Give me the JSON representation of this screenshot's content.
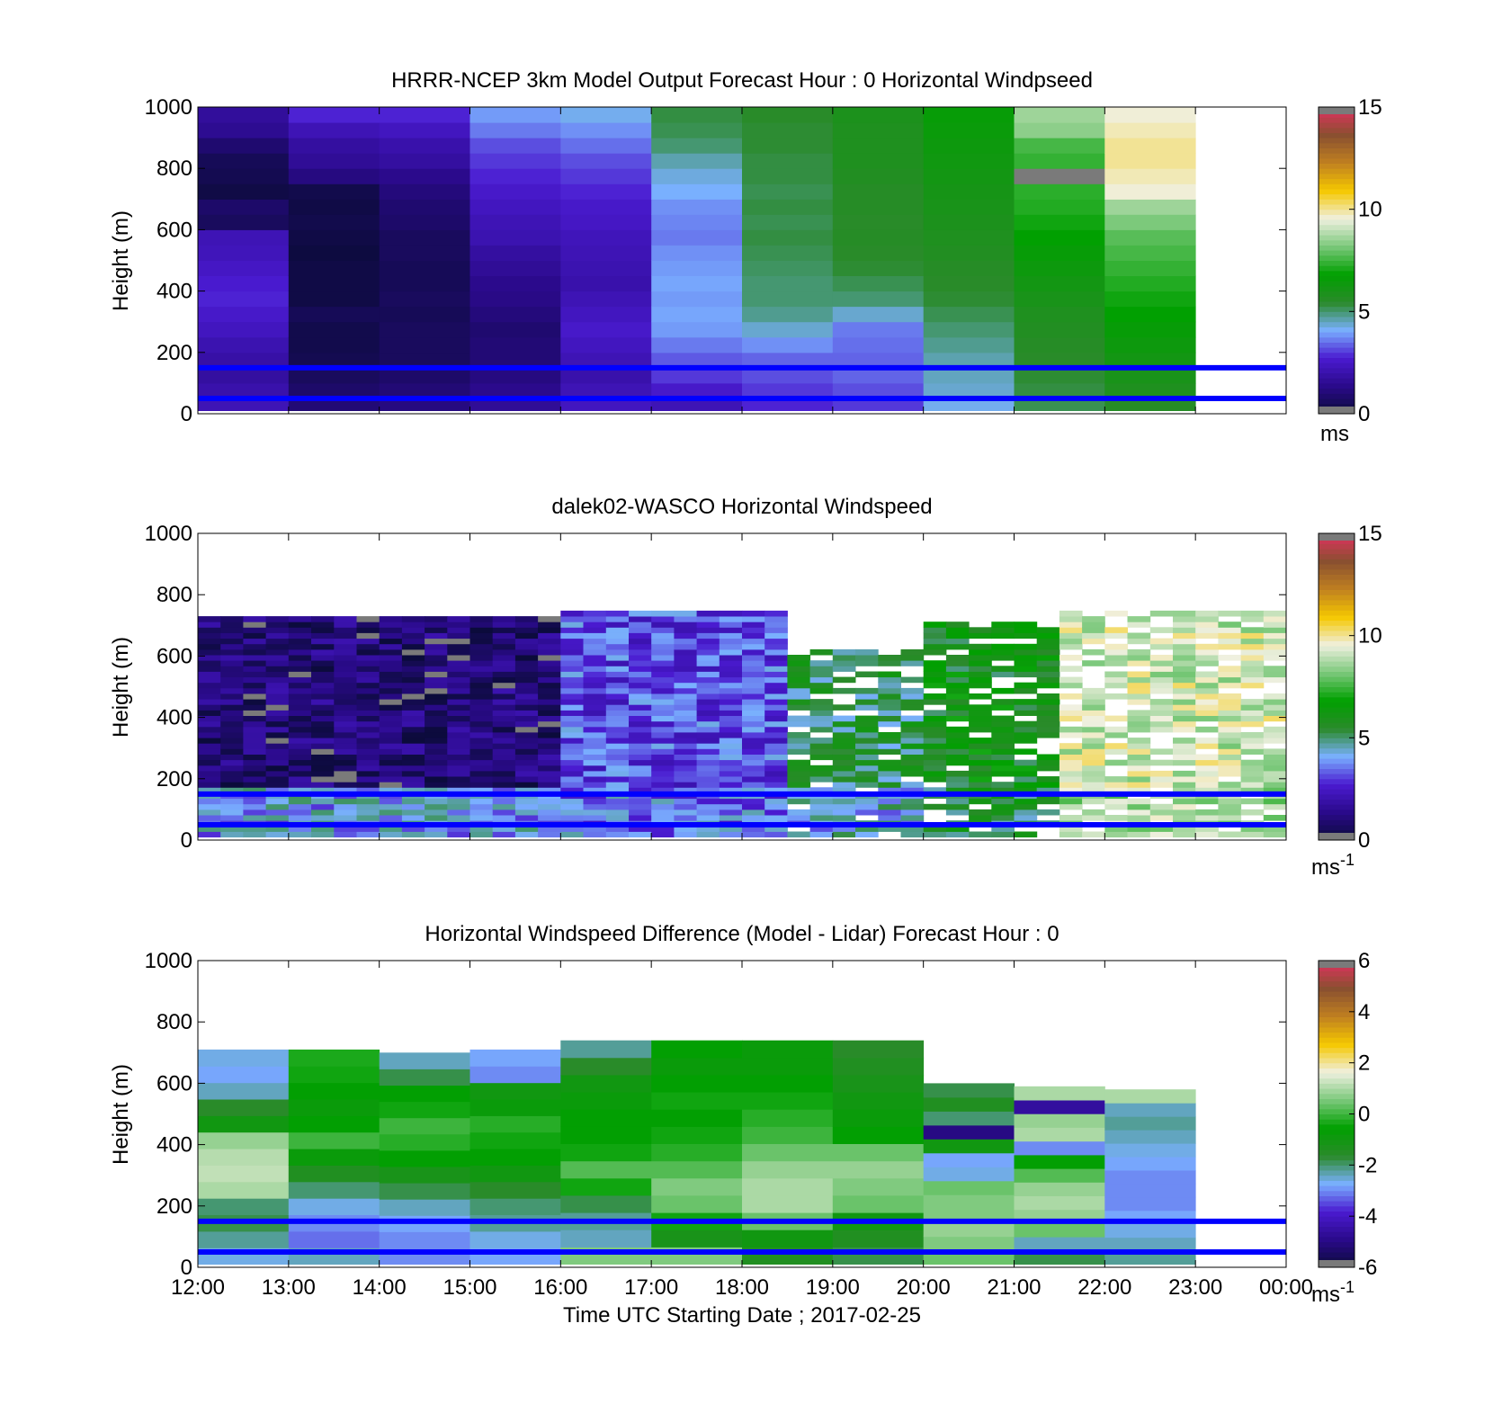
{
  "x_axis": {
    "tick_labels": [
      "12:00",
      "13:00",
      "14:00",
      "15:00",
      "16:00",
      "17:00",
      "18:00",
      "19:00",
      "20:00",
      "21:00",
      "22:00",
      "23:00",
      "00:00"
    ],
    "label": "Time UTC  Starting Date ; 2017-02-25"
  },
  "reference_lines": {
    "heights_m": [
      150,
      50
    ],
    "color": "#0000ff"
  },
  "colormap": {
    "stops": [
      "#7a7a7a",
      "#0b0b3a",
      "#2a0a8a",
      "#4a1ad0",
      "#7ab0ff",
      "#2a8a2a",
      "#00a000",
      "#7ac87a",
      "#f0f0e0",
      "#f5c800",
      "#c08020",
      "#8a5030",
      "#e03060",
      "#7a7a7a"
    ]
  },
  "chart_data": [
    {
      "type": "heatmap",
      "title": "HRRR-NCEP 3km Model Output   Forecast Hour : 0 Horizontal Windpseed",
      "ylabel": "Height (m)",
      "ylim": [
        0,
        1000
      ],
      "y_ticks": [
        "0",
        "200",
        "400",
        "600",
        "800",
        "1000"
      ],
      "xlim_hours": [
        12,
        24
      ],
      "colorbar": {
        "min": 0,
        "max": 15,
        "ticks": [
          "0",
          "5",
          "10",
          "15"
        ],
        "unit": "ms"
      },
      "columns_start_hour": [
        12,
        13,
        14,
        15,
        16,
        17,
        18,
        19,
        20,
        21,
        22
      ],
      "column_width_hours": 1,
      "row_heights_m": [
        10,
        50,
        100,
        150,
        200,
        250,
        300,
        350,
        400,
        450,
        500,
        550,
        600,
        650,
        700,
        750,
        800,
        850,
        900,
        950
      ],
      "values": [
        [
          2.2,
          2.0,
          1.8,
          1.9,
          2.1,
          2.4,
          2.6,
          2.8,
          2.7,
          2.5,
          2.3,
          2.2,
          0.6,
          0.8,
          0.2,
          0.4,
          0.5,
          0.9,
          1.5,
          1.7
        ],
        [
          1.0,
          0.8,
          0.6,
          0.4,
          0.3,
          0.3,
          0.5,
          0.2,
          0.2,
          0.2,
          0.1,
          0.2,
          0.3,
          0.2,
          0.3,
          1.2,
          1.6,
          1.8,
          2.2,
          2.8
        ],
        [
          1.2,
          1.0,
          0.8,
          0.6,
          0.6,
          0.6,
          0.5,
          0.6,
          0.5,
          0.5,
          0.6,
          0.6,
          0.8,
          0.9,
          1.1,
          1.4,
          1.8,
          2.0,
          2.4,
          2.8
        ],
        [
          1.6,
          1.4,
          1.2,
          1.0,
          1.0,
          0.9,
          1.1,
          1.3,
          1.4,
          1.6,
          1.8,
          2.1,
          2.2,
          2.4,
          2.6,
          2.8,
          3.0,
          3.2,
          3.6,
          3.9
        ],
        [
          2.4,
          2.2,
          2.0,
          2.2,
          2.4,
          2.6,
          2.4,
          2.2,
          2.0,
          2.1,
          2.2,
          2.3,
          2.5,
          2.6,
          2.8,
          3.0,
          3.2,
          3.5,
          3.8,
          4.2
        ],
        [
          2.2,
          2.6,
          3.0,
          3.3,
          3.6,
          3.9,
          4.0,
          3.9,
          4.0,
          3.9,
          3.8,
          3.6,
          3.7,
          3.8,
          4.1,
          4.3,
          4.6,
          5.0,
          5.2,
          5.3
        ],
        [
          2.8,
          3.0,
          3.2,
          3.4,
          3.8,
          4.4,
          4.8,
          5.0,
          5.0,
          5.1,
          5.2,
          5.3,
          5.2,
          5.3,
          5.2,
          5.3,
          5.3,
          5.4,
          5.4,
          5.5
        ],
        [
          3.0,
          3.2,
          3.4,
          3.4,
          3.5,
          3.6,
          4.4,
          5.0,
          5.2,
          5.4,
          5.5,
          5.6,
          5.5,
          5.6,
          5.6,
          5.7,
          5.8,
          5.8,
          5.8,
          5.9
        ],
        [
          4.2,
          4.4,
          4.5,
          4.6,
          4.8,
          5.0,
          5.2,
          5.4,
          5.5,
          5.6,
          5.7,
          5.8,
          5.9,
          6.0,
          6.1,
          6.2,
          6.3,
          6.4,
          6.5,
          6.6
        ],
        [
          5.2,
          5.3,
          5.4,
          5.5,
          5.6,
          5.7,
          5.8,
          6.0,
          6.2,
          6.4,
          6.6,
          6.8,
          7.0,
          7.2,
          7.3,
          0.0,
          7.4,
          7.6,
          8.4,
          8.6
        ],
        [
          5.6,
          5.8,
          6.0,
          6.2,
          6.4,
          6.6,
          6.8,
          7.0,
          7.2,
          7.4,
          7.6,
          7.8,
          8.2,
          8.6,
          9.6,
          9.8,
          10.0,
          10.0,
          9.8,
          9.6
        ]
      ]
    },
    {
      "type": "heatmap",
      "title": "dalek02-WASCO  Horizontal Windspeed",
      "ylabel": "Height (m)",
      "ylim": [
        0,
        1000
      ],
      "y_ticks": [
        "0",
        "200",
        "400",
        "600",
        "800",
        "1000"
      ],
      "xlim_hours": [
        12,
        24
      ],
      "colorbar": {
        "min": 0,
        "max": 15,
        "ticks": [
          "0",
          "5",
          "10",
          "15"
        ],
        "unit": "ms-1"
      },
      "profile_interval_minutes": 15,
      "row_height_m": 18,
      "max_height_m": 800,
      "regimes": [
        {
          "from_hour": 12.0,
          "to_hour": 16.0,
          "low_level": 4.0,
          "mid_level": 1.0,
          "top_m": 720
        },
        {
          "from_hour": 16.0,
          "to_hour": 18.5,
          "low_level": 3.6,
          "mid_level": 3.2,
          "top_m": 740
        },
        {
          "from_hour": 18.5,
          "to_hour": 20.0,
          "low_level": 4.2,
          "mid_level": 5.2,
          "top_m": 620
        },
        {
          "from_hour": 20.0,
          "to_hour": 21.5,
          "low_level": 5.4,
          "mid_level": 6.0,
          "top_m": 700
        },
        {
          "from_hour": 21.5,
          "to_hour": 23.8,
          "low_level": 8.6,
          "mid_level": 9.2,
          "top_m": 740
        }
      ]
    },
    {
      "type": "heatmap",
      "title": "Horizontal Windspeed Difference (Model - Lidar) Forecast Hour : 0",
      "ylabel": "Height (m)",
      "ylim": [
        0,
        1000
      ],
      "y_ticks": [
        "0",
        "200",
        "400",
        "600",
        "800",
        "1000"
      ],
      "xlim_hours": [
        12,
        24
      ],
      "colorbar": {
        "min": -6,
        "max": 6,
        "ticks": [
          "-6",
          "-4",
          "-2",
          "0",
          "2",
          "4",
          "6"
        ],
        "unit": "ms-1"
      },
      "columns_start_hour": [
        12,
        13,
        14,
        15,
        16,
        17,
        18,
        19,
        20,
        21,
        22
      ],
      "column_width_hours": 1,
      "column_top_m": [
        710,
        710,
        700,
        710,
        740,
        740,
        740,
        740,
        600,
        590,
        580
      ],
      "values": [
        [
          -2.6,
          -2.2,
          -1.8,
          -2.0,
          1.0,
          1.2,
          1.1,
          0.8,
          -1.0,
          -1.6,
          -2.4,
          -2.8,
          -2.6
        ],
        [
          -2.4,
          -3.2,
          -3.0,
          -2.6,
          -2.0,
          -1.4,
          -0.8,
          0.0,
          -0.6,
          -0.8,
          -0.6,
          -0.4,
          -0.3
        ],
        [
          -3.0,
          -3.0,
          -2.8,
          -2.4,
          -1.8,
          -1.2,
          -0.6,
          -0.2,
          0.0,
          -0.4,
          -0.6,
          -1.8,
          -2.4
        ],
        [
          -2.8,
          -2.6,
          -2.2,
          -2.0,
          -1.6,
          -1.0,
          -0.6,
          -0.4,
          -0.2,
          -0.8,
          -1.0,
          -3.0,
          -2.8
        ],
        [
          0.6,
          -2.4,
          -2.2,
          -1.8,
          -0.4,
          0.2,
          -0.4,
          -0.6,
          -0.6,
          -0.8,
          -1.0,
          -1.6,
          -2.2
        ],
        [
          0.6,
          -1.2,
          -0.4,
          0.4,
          0.6,
          0.2,
          -0.2,
          -0.4,
          -0.6,
          -0.4,
          -0.6,
          -0.8,
          -0.6
        ],
        [
          -1.4,
          -1.0,
          0.4,
          1.0,
          1.0,
          0.8,
          0.4,
          0.0,
          -0.2,
          -0.4,
          -0.6,
          -0.8,
          -0.8
        ],
        [
          -1.8,
          -1.4,
          -1.0,
          0.4,
          0.6,
          0.8,
          0.4,
          -0.6,
          -0.8,
          -1.0,
          -1.2,
          -1.4,
          -1.6
        ],
        [
          0.4,
          0.6,
          0.8,
          0.6,
          0.6,
          0.4,
          -2.6,
          -2.8,
          -1.0,
          -5.0,
          -2.0,
          -1.4,
          -1.8
        ],
        [
          -1.8,
          -2.4,
          0.4,
          0.8,
          1.0,
          0.8,
          0.2,
          -0.6,
          -3.0,
          1.0,
          0.8,
          -4.6,
          1.0
        ],
        [
          -2.2,
          -2.4,
          -2.6,
          -2.8,
          -3.0,
          -3.0,
          -3.0,
          -2.8,
          -2.6,
          -2.4,
          -2.2,
          -2.4,
          1.0
        ]
      ]
    }
  ]
}
